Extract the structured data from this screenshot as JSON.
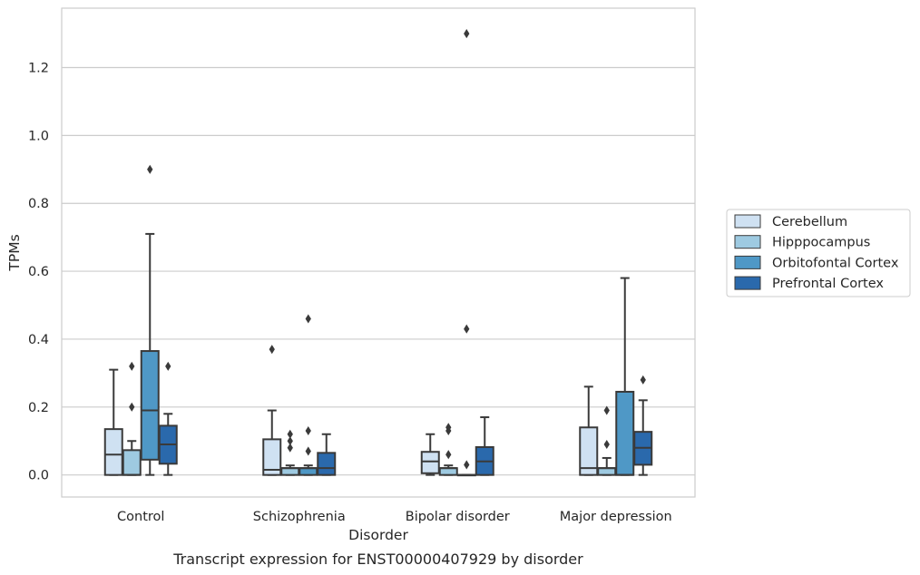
{
  "caption": "Transcript expression for ENST00000407929 by disorder",
  "chart_data": {
    "type": "box",
    "xlabel": "Disorder",
    "ylabel": "TPMs",
    "ylim": [
      -0.065,
      1.375
    ],
    "yticks": [
      "0.0",
      "0.2",
      "0.4",
      "0.6",
      "0.8",
      "1.0",
      "1.2"
    ],
    "grid": "horizontal",
    "legend_position": "right",
    "categories": [
      "Control",
      "Schizophrenia",
      "Bipolar disorder",
      "Major depression"
    ],
    "series": [
      {
        "name": "Cerebellum",
        "color": "#cfe1f2",
        "boxes": [
          {
            "min": 0.0,
            "q1": 0.0,
            "median": 0.06,
            "q3": 0.135,
            "max": 0.31,
            "outliers": []
          },
          {
            "min": 0.0,
            "q1": 0.0,
            "median": 0.015,
            "q3": 0.105,
            "max": 0.19,
            "outliers": [
              0.37
            ]
          },
          {
            "min": 0.0,
            "q1": 0.005,
            "median": 0.04,
            "q3": 0.068,
            "max": 0.12,
            "outliers": []
          },
          {
            "min": 0.0,
            "q1": 0.0,
            "median": 0.02,
            "q3": 0.14,
            "max": 0.26,
            "outliers": []
          }
        ]
      },
      {
        "name": "Hipppocampus",
        "color": "#9ecae1",
        "boxes": [
          {
            "min": 0.0,
            "q1": 0.0,
            "median": 0.0,
            "q3": 0.073,
            "max": 0.1,
            "outliers": [
              0.2,
              0.32
            ]
          },
          {
            "min": 0.0,
            "q1": 0.0,
            "median": 0.02,
            "q3": 0.02,
            "max": 0.028,
            "outliers": [
              0.08,
              0.1,
              0.12
            ]
          },
          {
            "min": 0.0,
            "q1": 0.0,
            "median": 0.02,
            "q3": 0.02,
            "max": 0.028,
            "outliers": [
              0.06,
              0.13,
              0.14
            ]
          },
          {
            "min": 0.0,
            "q1": 0.0,
            "median": 0.02,
            "q3": 0.02,
            "max": 0.05,
            "outliers": [
              0.09,
              0.19
            ]
          }
        ]
      },
      {
        "name": "Orbitofontal Cortex",
        "color": "#4f98c6",
        "boxes": [
          {
            "min": 0.0,
            "q1": 0.045,
            "median": 0.19,
            "q3": 0.365,
            "max": 0.71,
            "outliers": [
              0.9
            ]
          },
          {
            "min": 0.0,
            "q1": 0.0,
            "median": 0.02,
            "q3": 0.02,
            "max": 0.028,
            "outliers": [
              0.07,
              0.13,
              0.46
            ]
          },
          {
            "min": 0.0,
            "q1": 0.0,
            "median": 0.0,
            "q3": 0.0,
            "max": 0.0,
            "outliers": [
              0.03,
              0.43,
              1.3
            ]
          },
          {
            "min": 0.0,
            "q1": 0.0,
            "median": 0.0,
            "q3": 0.245,
            "max": 0.58,
            "outliers": []
          }
        ]
      },
      {
        "name": "Prefrontal Cortex",
        "color": "#2a69ac",
        "boxes": [
          {
            "min": 0.0,
            "q1": 0.033,
            "median": 0.09,
            "q3": 0.145,
            "max": 0.18,
            "outliers": [
              0.32
            ]
          },
          {
            "min": 0.0,
            "q1": 0.0,
            "median": 0.02,
            "q3": 0.065,
            "max": 0.12,
            "outliers": []
          },
          {
            "min": 0.0,
            "q1": 0.0,
            "median": 0.04,
            "q3": 0.082,
            "max": 0.17,
            "outliers": []
          },
          {
            "min": 0.0,
            "q1": 0.03,
            "median": 0.08,
            "q3": 0.127,
            "max": 0.22,
            "outliers": [
              0.28
            ]
          }
        ]
      }
    ]
  }
}
